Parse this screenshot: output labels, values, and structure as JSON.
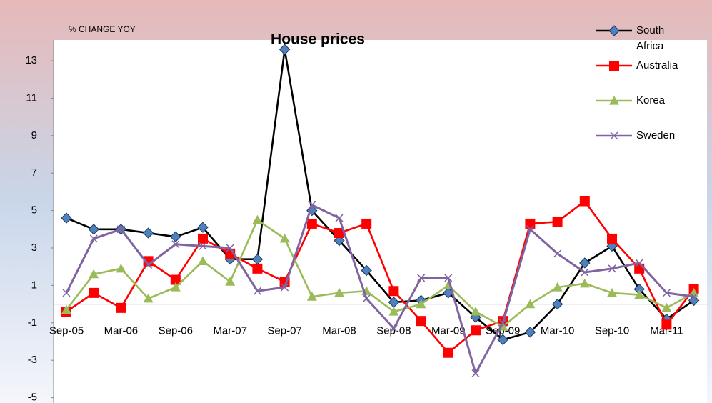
{
  "chart_data": {
    "type": "line",
    "title": "House prices",
    "ylabel": "% CHANGE YOY",
    "categories": [
      "Sep-05",
      null,
      "Mar-06",
      null,
      "Sep-06",
      null,
      "Mar-07",
      null,
      "Sep-07",
      null,
      "Mar-08",
      null,
      "Sep-08",
      null,
      "Mar-09",
      null,
      "Sep-09",
      null,
      "Mar-10",
      null,
      "Sep-10",
      null,
      "Mar-11",
      null
    ],
    "series": [
      {
        "name": "South Africa",
        "color": "#000000",
        "marker": "diamond",
        "values": [
          4.6,
          4.0,
          4.0,
          3.8,
          3.6,
          4.1,
          2.4,
          2.4,
          13.6,
          5.0,
          3.4,
          1.8,
          0.1,
          0.2,
          0.6,
          -0.7,
          -1.9,
          -1.5,
          0,
          2.2,
          3.1,
          0.8,
          -0.8,
          0.2
        ]
      },
      {
        "name": "Australia",
        "color": "#ff0000",
        "marker": "square",
        "values": [
          -0.4,
          0.6,
          -0.2,
          2.3,
          1.3,
          3.5,
          2.7,
          1.9,
          1.2,
          4.3,
          3.8,
          4.3,
          0.7,
          -0.9,
          -2.6,
          -1.4,
          -0.9,
          4.3,
          4.4,
          5.5,
          3.5,
          1.9,
          -1.1,
          0.8
        ]
      },
      {
        "name": "Korea",
        "color": "#9bbb59",
        "marker": "triangle",
        "values": [
          -0.3,
          1.6,
          1.9,
          0.3,
          0.9,
          2.3,
          1.2,
          4.5,
          3.5,
          0.4,
          0.6,
          0.7,
          -0.4,
          0,
          1.0,
          -0.4,
          -1.2,
          0,
          0.9,
          1.1,
          0.6,
          0.5,
          -0.2,
          0.6
        ]
      },
      {
        "name": "Sweden",
        "color": "#8064a2",
        "marker": "x",
        "values": [
          0.6,
          3.5,
          4.0,
          2.1,
          3.2,
          3.1,
          3.0,
          0.7,
          0.9,
          5.3,
          4.6,
          0.3,
          -1.3,
          1.4,
          1.4,
          -3.7,
          -1.0,
          4.0,
          2.7,
          1.7,
          1.9,
          2.2,
          0.6,
          0.4
        ]
      }
    ],
    "ylim": [
      -5,
      14
    ],
    "yticks": [
      -5,
      -3,
      -1,
      1,
      3,
      5,
      7,
      9,
      11,
      13
    ],
    "grid": false,
    "legend": "top-right"
  }
}
